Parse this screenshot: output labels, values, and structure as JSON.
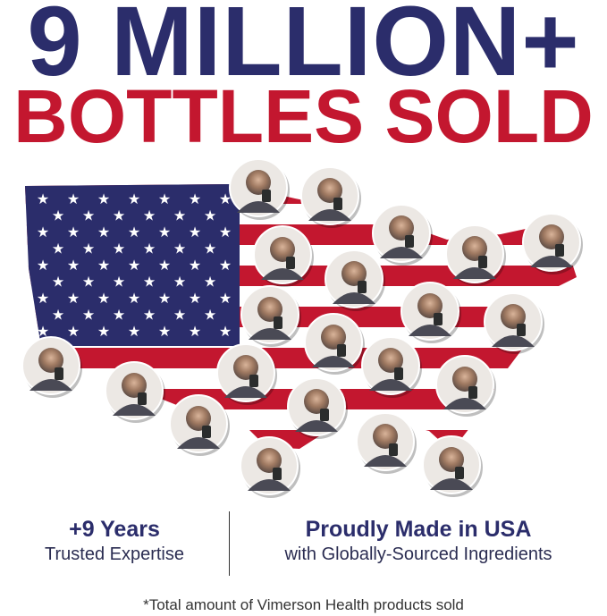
{
  "headline": {
    "line1": "9 MILLION+",
    "line2": "BOTTLES SOLD"
  },
  "colors": {
    "navy": "#2b2d6b",
    "red": "#c3172f"
  },
  "map": {
    "description_icon": "us-flag-map-icon",
    "photo_count": 21
  },
  "stats": [
    {
      "title": "+9 Years",
      "subtitle": "Trusted Expertise"
    },
    {
      "title": "Proudly Made in USA",
      "subtitle": "with Globally-Sourced Ingredients"
    }
  ],
  "footnote": "*Total amount of Vimerson Health products sold"
}
